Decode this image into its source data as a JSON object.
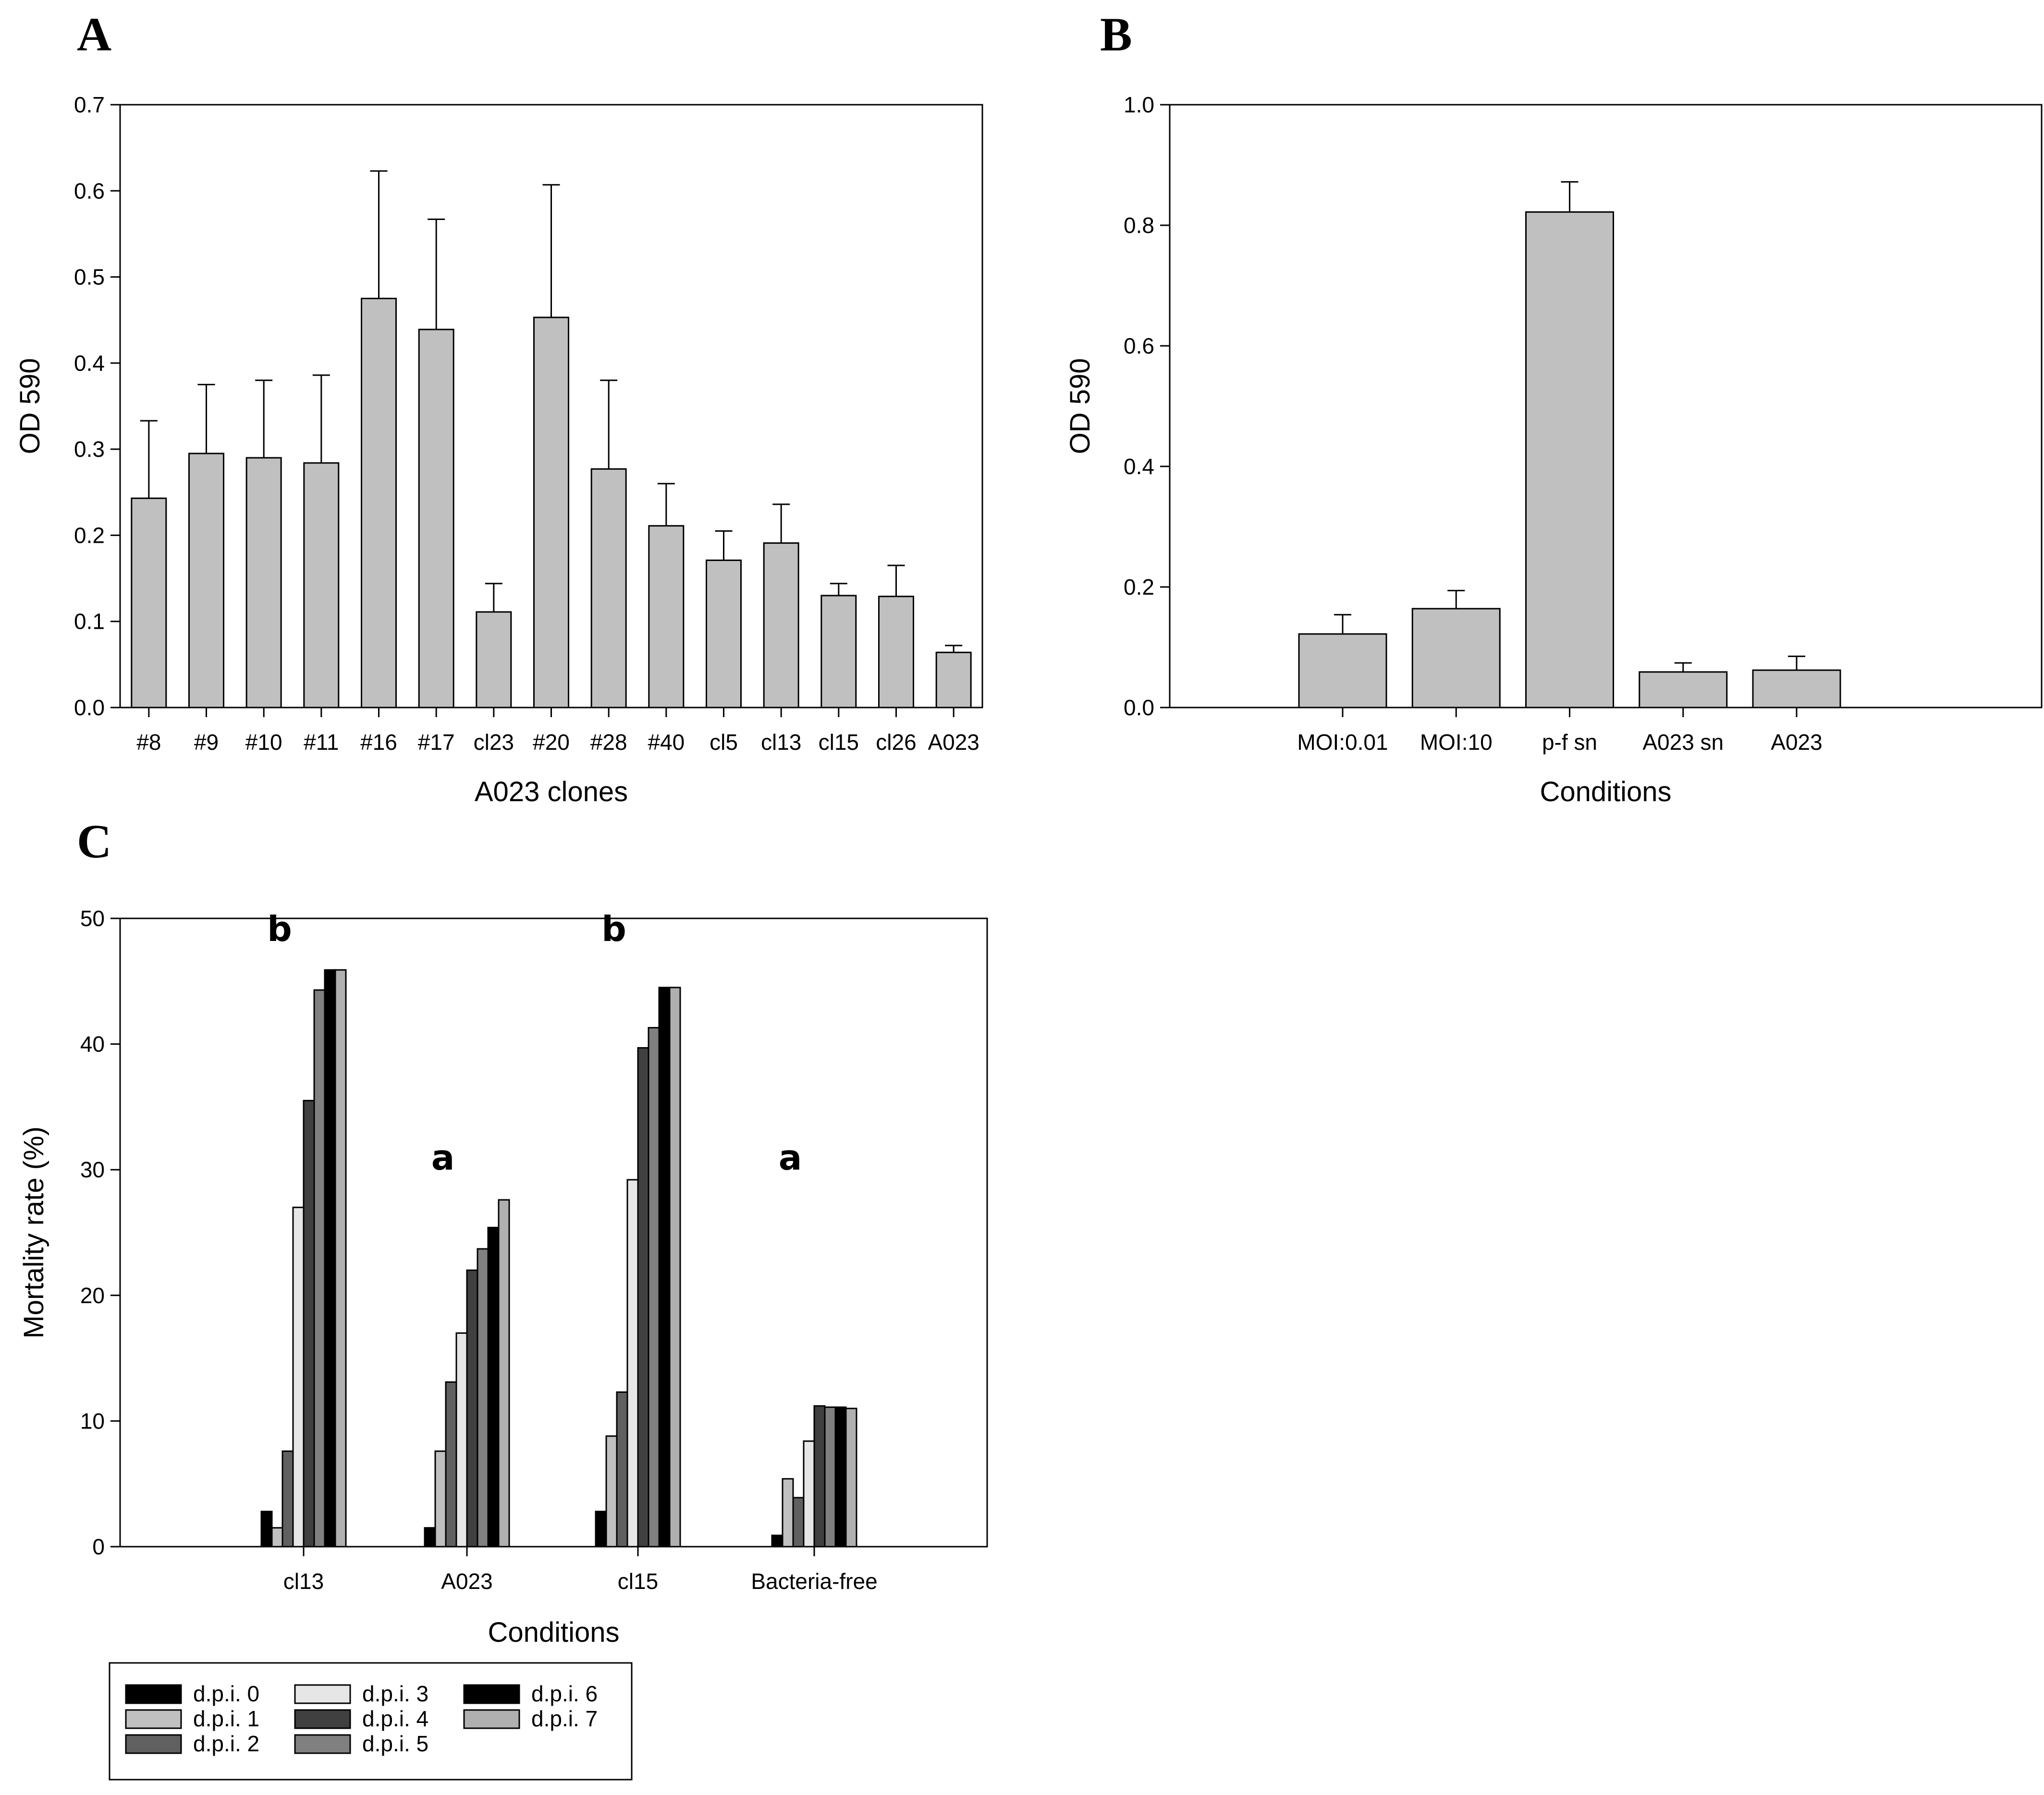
{
  "chart_data": [
    {
      "panel": "A",
      "type": "bar",
      "xlabel": "A023 clones",
      "ylabel": "OD 590",
      "ylim": [
        0,
        0.7
      ],
      "yticks": [
        "0.0",
        "0.1",
        "0.2",
        "0.3",
        "0.4",
        "0.5",
        "0.6",
        "0.7"
      ],
      "categories": [
        "#8",
        "#9",
        "#10",
        "#11",
        "#16",
        "#17",
        "cl23",
        "#20",
        "#28",
        "#40",
        "cl5",
        "cl13",
        "cl15",
        "cl26",
        "A023"
      ],
      "values": [
        0.243,
        0.295,
        0.29,
        0.284,
        0.475,
        0.439,
        0.111,
        0.453,
        0.277,
        0.211,
        0.171,
        0.191,
        0.13,
        0.129,
        0.064
      ],
      "errors": [
        0.09,
        0.08,
        0.09,
        0.102,
        0.148,
        0.128,
        0.033,
        0.154,
        0.103,
        0.049,
        0.034,
        0.045,
        0.014,
        0.036,
        0.008
      ],
      "bar_color": "#c0c0c0"
    },
    {
      "panel": "B",
      "type": "bar",
      "xlabel": "Conditions",
      "ylabel": "OD 590",
      "ylim": [
        0,
        1.0
      ],
      "yticks": [
        "0.0",
        "0.2",
        "0.4",
        "0.6",
        "0.8",
        "1.0"
      ],
      "categories": [
        "MOI:0.01",
        "MOI:10",
        "p-f sn",
        "A023 sn",
        "A023"
      ],
      "values": [
        0.122,
        0.164,
        0.822,
        0.059,
        0.062
      ],
      "errors": [
        0.032,
        0.03,
        0.05,
        0.015,
        0.023
      ],
      "bar_color": "#c0c0c0"
    },
    {
      "panel": "C",
      "type": "bar",
      "xlabel": "Conditions",
      "ylabel": "Mortality rate (%)",
      "ylim": [
        0,
        50
      ],
      "yticks": [
        "0",
        "10",
        "20",
        "30",
        "40",
        "50"
      ],
      "categories": [
        "cl13",
        "A023",
        "cl15",
        "Bacteria-free"
      ],
      "series": [
        {
          "name": "d.p.i. 0",
          "color": "#000000",
          "values": [
            2.8,
            1.5,
            2.8,
            0.9
          ]
        },
        {
          "name": "d.p.i. 1",
          "color": "#c0c0c0",
          "values": [
            1.5,
            7.6,
            8.8,
            5.4
          ]
        },
        {
          "name": "d.p.i. 2",
          "color": "#606060",
          "values": [
            7.6,
            13.1,
            12.3,
            3.9
          ]
        },
        {
          "name": "d.p.i. 3",
          "color": "#e6e6e6",
          "values": [
            27.0,
            17.0,
            29.2,
            8.4
          ]
        },
        {
          "name": "d.p.i. 4",
          "color": "#404040",
          "values": [
            35.5,
            22.0,
            39.7,
            11.2
          ]
        },
        {
          "name": "d.p.i. 5",
          "color": "#808080",
          "values": [
            44.3,
            23.7,
            41.3,
            11.1
          ]
        },
        {
          "name": "d.p.i. 6",
          "color": "#000000",
          "values": [
            45.9,
            25.4,
            44.5,
            11.1
          ]
        },
        {
          "name": "d.p.i. 7",
          "color": "#b0b0b0",
          "values": [
            45.9,
            27.6,
            44.5,
            11.0
          ]
        }
      ],
      "annotations": [
        {
          "category": "cl13",
          "text": "b",
          "y": 48.2
        },
        {
          "category": "A023",
          "text": "a",
          "y": 30.0
        },
        {
          "category": "cl15",
          "text": "b",
          "y": 48.2
        },
        {
          "category": "Bacteria-free",
          "text": "a",
          "y": 30.0
        }
      ]
    }
  ]
}
